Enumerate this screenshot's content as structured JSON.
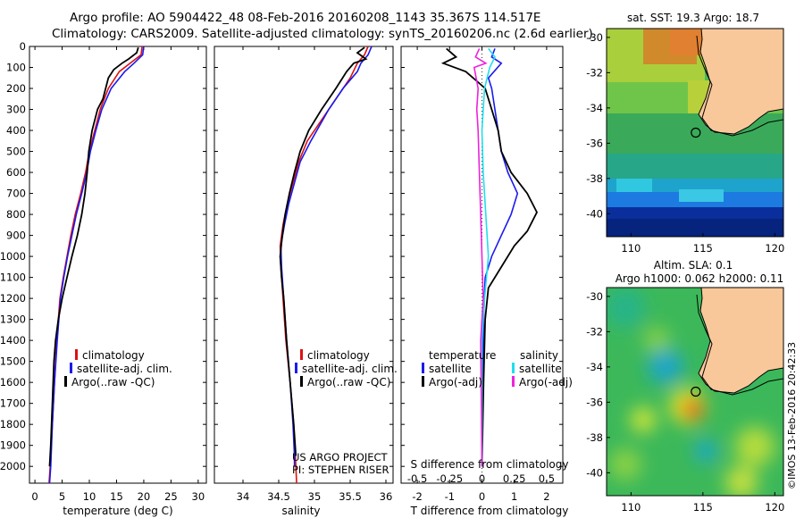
{
  "header": {
    "line1": "Argo profile: AO 5904422_48 08-Feb-2016 20160208_1143 35.367S 114.517E",
    "line2": "Climatology: CARS2009. Satellite-adjusted climatology: synTS_20160206.nc (2.6d earlier)"
  },
  "credit": "©IMOS 13-Feb-2016 20:42:33",
  "colors": {
    "climatology": "#dd1111",
    "satellite": "#1a1aee",
    "argo": "#000000",
    "sal_satellite": "#22ddee",
    "sal_argo": "#ee22dd",
    "land": "#f8c89a"
  },
  "chart_data": [
    {
      "type": "line",
      "name": "temperature",
      "xlabel": "temperature (deg C)",
      "xlim": [
        -1,
        31.5
      ],
      "xticks": [
        "0",
        "5",
        "10",
        "15",
        "20",
        "25",
        "30"
      ],
      "xtick_values": [
        0,
        5,
        10,
        15,
        20,
        25,
        30
      ],
      "ylim": [
        0,
        2080
      ],
      "yticks": [
        "0",
        "100",
        "200",
        "300",
        "400",
        "500",
        "600",
        "700",
        "800",
        "900",
        "1000",
        "1100",
        "1200",
        "1300",
        "1400",
        "1500",
        "1600",
        "1700",
        "1800",
        "1900",
        "2000"
      ],
      "ytick_values": [
        0,
        100,
        200,
        300,
        400,
        500,
        600,
        700,
        800,
        900,
        1000,
        1100,
        1200,
        1300,
        1400,
        1500,
        1600,
        1700,
        1800,
        1900,
        2000
      ],
      "legend": [
        "climatology",
        "satellite-adj. clim.",
        "Argo(..raw -QC)"
      ],
      "series": [
        {
          "name": "climatology",
          "color": "#dd1111",
          "points": [
            [
              19.7,
              0
            ],
            [
              19.5,
              40
            ],
            [
              17.5,
              80
            ],
            [
              15.5,
              120
            ],
            [
              13.5,
              200
            ],
            [
              12.0,
              300
            ],
            [
              11.0,
              400
            ],
            [
              10.0,
              500
            ],
            [
              9.3,
              600
            ],
            [
              8.4,
              700
            ],
            [
              7.4,
              800
            ],
            [
              6.6,
              900
            ],
            [
              5.9,
              1000
            ],
            [
              5.2,
              1100
            ],
            [
              4.6,
              1200
            ],
            [
              4.0,
              1400
            ],
            [
              3.6,
              1600
            ],
            [
              3.2,
              1800
            ],
            [
              2.8,
              2000
            ],
            [
              2.6,
              2080
            ]
          ]
        },
        {
          "name": "satellite-adj. clim.",
          "color": "#1a1aee",
          "points": [
            [
              20.0,
              0
            ],
            [
              19.8,
              40
            ],
            [
              18.2,
              80
            ],
            [
              16.5,
              120
            ],
            [
              14.0,
              200
            ],
            [
              12.3,
              300
            ],
            [
              11.2,
              400
            ],
            [
              10.2,
              500
            ],
            [
              9.5,
              600
            ],
            [
              8.6,
              700
            ],
            [
              7.6,
              800
            ],
            [
              6.8,
              900
            ],
            [
              6.0,
              1000
            ],
            [
              5.3,
              1100
            ],
            [
              4.7,
              1200
            ],
            [
              4.1,
              1400
            ],
            [
              3.6,
              1600
            ],
            [
              3.2,
              1800
            ],
            [
              2.9,
              2000
            ],
            [
              2.7,
              2080
            ]
          ]
        },
        {
          "name": "Argo(..raw -QC)",
          "color": "#000000",
          "points": [
            [
              19.0,
              5
            ],
            [
              18.7,
              30
            ],
            [
              17.2,
              60
            ],
            [
              16.0,
              80
            ],
            [
              14.5,
              110
            ],
            [
              13.5,
              150
            ],
            [
              12.5,
              250
            ],
            [
              11.5,
              300
            ],
            [
              10.5,
              400
            ],
            [
              9.9,
              500
            ],
            [
              9.6,
              600
            ],
            [
              9.2,
              700
            ],
            [
              8.6,
              800
            ],
            [
              7.8,
              900
            ],
            [
              6.8,
              1000
            ],
            [
              5.9,
              1100
            ],
            [
              5.0,
              1200
            ],
            [
              4.3,
              1300
            ],
            [
              3.8,
              1400
            ],
            [
              3.5,
              1500
            ],
            [
              3.2,
              1700
            ],
            [
              2.9,
              1900
            ],
            [
              2.7,
              2000
            ]
          ]
        }
      ]
    },
    {
      "type": "line",
      "name": "salinity",
      "xlabel": "salinity",
      "xlim": [
        33.6,
        36.1
      ],
      "xticks": [
        "34",
        "34.5",
        "35",
        "35.5",
        "36"
      ],
      "xtick_values": [
        34,
        34.5,
        35,
        35.5,
        36
      ],
      "ylim": [
        0,
        2080
      ],
      "legend": [
        "climatology",
        "satellite-adj. clim.",
        "Argo(..raw -QC)"
      ],
      "annotation": [
        "US ARGO PROJECT",
        "PI: STEPHEN RISER"
      ],
      "series": [
        {
          "name": "climatology",
          "color": "#dd1111",
          "points": [
            [
              35.75,
              0
            ],
            [
              35.7,
              40
            ],
            [
              35.6,
              80
            ],
            [
              35.5,
              150
            ],
            [
              35.3,
              250
            ],
            [
              35.1,
              350
            ],
            [
              34.9,
              450
            ],
            [
              34.78,
              550
            ],
            [
              34.7,
              650
            ],
            [
              34.62,
              750
            ],
            [
              34.56,
              850
            ],
            [
              34.52,
              950
            ],
            [
              34.53,
              1050
            ],
            [
              34.56,
              1200
            ],
            [
              34.6,
              1400
            ],
            [
              34.66,
              1600
            ],
            [
              34.71,
              1800
            ],
            [
              34.74,
              2000
            ],
            [
              34.75,
              2080
            ]
          ]
        },
        {
          "name": "satellite-adj. clim.",
          "color": "#1a1aee",
          "points": [
            [
              35.8,
              0
            ],
            [
              35.75,
              40
            ],
            [
              35.65,
              80
            ],
            [
              35.6,
              120
            ],
            [
              35.4,
              200
            ],
            [
              35.2,
              300
            ],
            [
              34.95,
              450
            ],
            [
              34.8,
              550
            ],
            [
              34.72,
              650
            ],
            [
              34.64,
              750
            ],
            [
              34.58,
              850
            ],
            [
              34.53,
              950
            ],
            [
              34.54,
              1050
            ],
            [
              34.57,
              1200
            ],
            [
              34.61,
              1400
            ],
            [
              34.66,
              1600
            ],
            [
              34.7,
              1800
            ],
            [
              34.72,
              1950
            ],
            [
              34.72,
              2000
            ]
          ]
        },
        {
          "name": "Argo(..raw -QC)",
          "color": "#000000",
          "points": [
            [
              35.7,
              5
            ],
            [
              35.6,
              30
            ],
            [
              35.72,
              60
            ],
            [
              35.55,
              80
            ],
            [
              35.45,
              120
            ],
            [
              35.3,
              200
            ],
            [
              35.1,
              300
            ],
            [
              34.92,
              400
            ],
            [
              34.8,
              500
            ],
            [
              34.72,
              600
            ],
            [
              34.65,
              700
            ],
            [
              34.59,
              800
            ],
            [
              34.55,
              900
            ],
            [
              34.52,
              1000
            ],
            [
              34.54,
              1100
            ],
            [
              34.57,
              1200
            ],
            [
              34.61,
              1400
            ],
            [
              34.66,
              1600
            ],
            [
              34.71,
              1800
            ],
            [
              34.74,
              1950
            ]
          ]
        }
      ]
    },
    {
      "type": "line",
      "name": "difference from climatology",
      "xlabel": "T difference from climatology",
      "xlabel_top": "S difference from climatology",
      "xlim": [
        -2.5,
        2.5
      ],
      "xticks": [
        "-2",
        "-1",
        "0",
        "1",
        "2"
      ],
      "xtick_values": [
        -2,
        -1,
        0,
        1,
        2
      ],
      "sal_xticks": [
        "-0.5",
        "-0.25",
        "0",
        "0.25",
        "0.5"
      ],
      "sal_xtick_values": [
        -0.5,
        -0.25,
        0,
        0.25,
        0.5
      ],
      "ylim": [
        0,
        2080
      ],
      "legend_temperature": [
        "temperature",
        "satellite",
        "Argo(-adj)"
      ],
      "legend_salinity": [
        "salinity",
        "satellite",
        "Argo(-adj)"
      ],
      "series": [
        {
          "name": "temperature satellite",
          "color": "#1a1aee",
          "points": [
            [
              0.4,
              10
            ],
            [
              0.3,
              50
            ],
            [
              0.6,
              80
            ],
            [
              0.2,
              150
            ],
            [
              0.3,
              200
            ],
            [
              0.4,
              300
            ],
            [
              0.5,
              400
            ],
            [
              0.6,
              500
            ],
            [
              0.8,
              600
            ],
            [
              1.1,
              700
            ],
            [
              0.9,
              800
            ],
            [
              0.6,
              900
            ],
            [
              0.3,
              1000
            ],
            [
              0.1,
              1100
            ],
            [
              0.05,
              1300
            ],
            [
              0.02,
              1600
            ],
            [
              0.0,
              2000
            ]
          ]
        },
        {
          "name": "temperature Argo(-adj)",
          "color": "#000000",
          "points": [
            [
              -1.1,
              10
            ],
            [
              -0.8,
              50
            ],
            [
              -1.2,
              80
            ],
            [
              -0.5,
              120
            ],
            [
              -0.2,
              160
            ],
            [
              0.1,
              200
            ],
            [
              0.3,
              300
            ],
            [
              0.5,
              400
            ],
            [
              0.6,
              500
            ],
            [
              0.9,
              600
            ],
            [
              1.4,
              700
            ],
            [
              1.7,
              790
            ],
            [
              1.4,
              880
            ],
            [
              1.0,
              950
            ],
            [
              0.6,
              1050
            ],
            [
              0.2,
              1150
            ],
            [
              0.1,
              1300
            ],
            [
              0.05,
              1600
            ],
            [
              0.0,
              2000
            ]
          ]
        },
        {
          "name": "salinity satellite",
          "color": "#22ddee",
          "points": [
            [
              0.05,
              10
            ],
            [
              0.1,
              50
            ],
            [
              0.06,
              100
            ],
            [
              0.02,
              200
            ],
            [
              0.0,
              400
            ],
            [
              0.01,
              600
            ],
            [
              0.03,
              800
            ],
            [
              0.05,
              1000
            ],
            [
              0.02,
              1200
            ],
            [
              0.0,
              1400
            ],
            [
              0.0,
              2000
            ]
          ]
        },
        {
          "name": "salinity Argo(-adj)",
          "color": "#ee22dd",
          "points": [
            [
              -0.02,
              10
            ],
            [
              -0.05,
              50
            ],
            [
              0.03,
              80
            ],
            [
              -0.06,
              100
            ],
            [
              -0.03,
              200
            ],
            [
              -0.04,
              300
            ],
            [
              -0.03,
              400
            ],
            [
              -0.02,
              600
            ],
            [
              -0.01,
              800
            ],
            [
              0.0,
              1000
            ],
            [
              0.01,
              1200
            ],
            [
              -0.01,
              1400
            ],
            [
              0.0,
              2000
            ]
          ]
        }
      ]
    },
    {
      "type": "heatmap",
      "name": "satellite SST map",
      "title": "sat. SST: 19.3  Argo: 18.7",
      "xticks": [
        "110",
        "115",
        "120"
      ],
      "yticks": [
        "-30",
        "-32",
        "-34",
        "-36",
        "-38",
        "-40"
      ],
      "xlim": [
        108.3,
        120.6
      ],
      "ylim": [
        -41.3,
        -29.5
      ],
      "marker_lon": 114.5,
      "marker_lat": -35.4
    },
    {
      "type": "heatmap",
      "name": "altimetry SLA map",
      "title_line1": "Altim. SLA: 0.1",
      "title_line2": "Argo h1000: 0.062 h2000: 0.11",
      "xticks": [
        "110",
        "115",
        "120"
      ],
      "yticks": [
        "-30",
        "-32",
        "-34",
        "-36",
        "-38",
        "-40"
      ],
      "xlim": [
        108.3,
        120.6
      ],
      "ylim": [
        -41.3,
        -29.5
      ],
      "marker_lon": 114.5,
      "marker_lat": -35.4
    }
  ]
}
